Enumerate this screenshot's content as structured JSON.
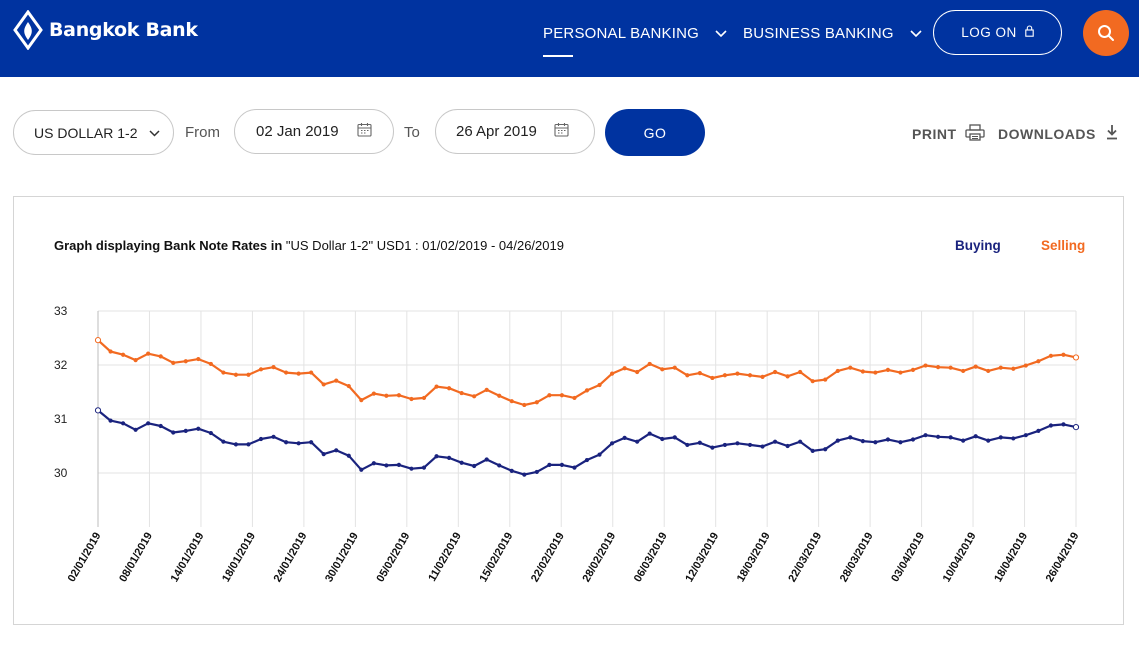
{
  "header": {
    "brand": "Bangkok Bank",
    "nav": [
      "PERSONAL BANKING",
      "BUSINESS BANKING"
    ],
    "logon_label": "LOG ON",
    "brand_color": "#0033a0",
    "accent_color": "#f26a21"
  },
  "controls": {
    "currency": "US DOLLAR 1-2",
    "from_label": "From",
    "from_date": "02 Jan 2019",
    "to_label": "To",
    "to_date": "26 Apr 2019",
    "go_label": "GO",
    "print_label": "PRINT",
    "downloads_label": "DOWNLOADS"
  },
  "chart": {
    "title_bold": "Graph displaying Bank Note Rates in",
    "title_rest": " \"US Dollar 1-2\" USD1 : 01/02/2019 - 04/26/2019",
    "legend_buying": "Buying",
    "legend_selling": "Selling"
  },
  "chart_data": {
    "type": "line",
    "ylim": [
      29,
      33
    ],
    "yticks": [
      30,
      31,
      32,
      33
    ],
    "grid": true,
    "x_tick_labels": [
      "02/01/2019",
      "08/01/2019",
      "14/01/2019",
      "18/01/2019",
      "24/01/2019",
      "30/01/2019",
      "05/02/2019",
      "11/02/2019",
      "15/02/2019",
      "22/02/2019",
      "28/02/2019",
      "06/03/2019",
      "12/03/2019",
      "18/03/2019",
      "22/03/2019",
      "28/03/2019",
      "03/04/2019",
      "10/04/2019",
      "18/04/2019",
      "26/04/2019"
    ],
    "series": [
      {
        "name": "Buying",
        "color": "#1a237e",
        "values": [
          31.16,
          30.97,
          30.92,
          30.8,
          30.92,
          30.87,
          30.75,
          30.78,
          30.82,
          30.74,
          30.58,
          30.53,
          30.53,
          30.63,
          30.67,
          30.57,
          30.55,
          30.57,
          30.35,
          30.42,
          30.32,
          30.06,
          30.18,
          30.14,
          30.15,
          30.08,
          30.1,
          30.31,
          30.28,
          30.19,
          30.13,
          30.25,
          30.14,
          30.04,
          29.97,
          30.02,
          30.15,
          30.15,
          30.1,
          30.24,
          30.34,
          30.55,
          30.65,
          30.58,
          30.73,
          30.63,
          30.66,
          30.52,
          30.56,
          30.47,
          30.52,
          30.55,
          30.52,
          30.49,
          30.58,
          30.5,
          30.58,
          30.41,
          30.44,
          30.6,
          30.66,
          30.59,
          30.57,
          30.62,
          30.57,
          30.62,
          30.7,
          30.67,
          30.66,
          30.6,
          30.68,
          30.6,
          30.66,
          30.64,
          30.7,
          30.78,
          30.88,
          30.9,
          30.85
        ]
      },
      {
        "name": "Selling",
        "color": "#f26a21",
        "values": [
          32.46,
          32.25,
          32.19,
          32.09,
          32.21,
          32.16,
          32.04,
          32.07,
          32.11,
          32.02,
          31.86,
          31.82,
          31.82,
          31.92,
          31.96,
          31.86,
          31.84,
          31.86,
          31.64,
          31.71,
          31.61,
          31.35,
          31.47,
          31.43,
          31.44,
          31.37,
          31.39,
          31.6,
          31.57,
          31.48,
          31.42,
          31.54,
          31.43,
          31.33,
          31.26,
          31.31,
          31.44,
          31.44,
          31.39,
          31.53,
          31.63,
          31.84,
          31.94,
          31.87,
          32.02,
          31.92,
          31.95,
          31.81,
          31.85,
          31.76,
          31.81,
          31.84,
          31.81,
          31.78,
          31.87,
          31.79,
          31.87,
          31.7,
          31.73,
          31.89,
          31.95,
          31.88,
          31.86,
          31.91,
          31.86,
          31.91,
          31.99,
          31.96,
          31.95,
          31.89,
          31.97,
          31.89,
          31.95,
          31.93,
          31.99,
          32.07,
          32.17,
          32.19,
          32.14
        ]
      }
    ]
  }
}
